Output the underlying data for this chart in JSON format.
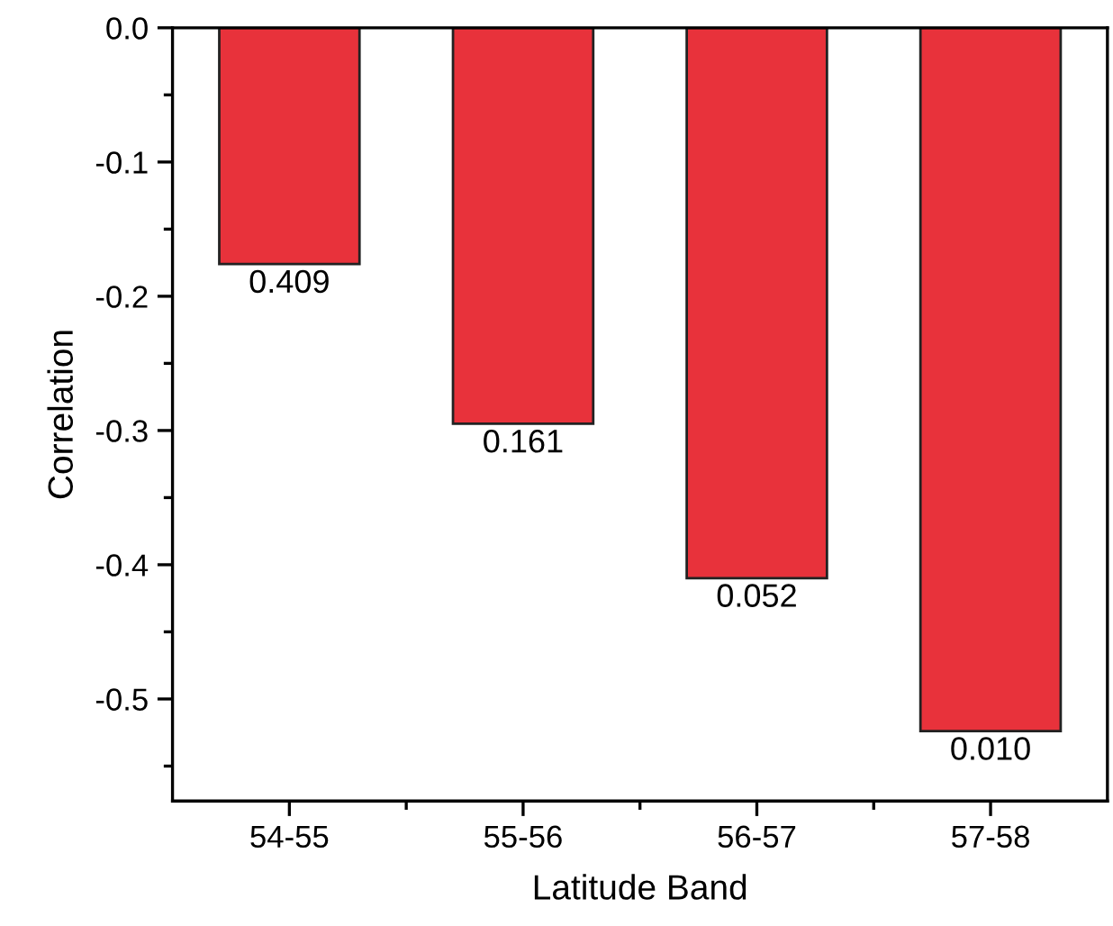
{
  "chart_data": {
    "type": "bar",
    "xlabel": "Latitude Band",
    "ylabel": "Correlation",
    "categories": [
      "54-55",
      "55-56",
      "56-57",
      "57-58"
    ],
    "values": [
      -0.176,
      -0.295,
      -0.41,
      -0.524
    ],
    "color": "#e8323b",
    "ylim": [
      -0.576,
      0
    ],
    "yticks": [
      {
        "value": -0.5,
        "label": "-0.5"
      },
      {
        "value": -0.4,
        "label": "-0.4"
      },
      {
        "value": -0.3,
        "label": "-0.3"
      },
      {
        "value": -0.2,
        "label": "-0.2"
      },
      {
        "value": -0.1,
        "label": "-0.1"
      },
      {
        "value": 0,
        "label": "0.0"
      }
    ],
    "annotations": [
      {
        "text": "0.409",
        "x": "54-55",
        "y": -0.176
      },
      {
        "text": "0.161",
        "x": "55-56",
        "y": -0.295
      },
      {
        "text": "0.052",
        "x": "56-57",
        "y": -0.41
      },
      {
        "text": "0.010",
        "x": "57-58",
        "y": -0.524
      }
    ],
    "grid": false,
    "legend": false
  }
}
